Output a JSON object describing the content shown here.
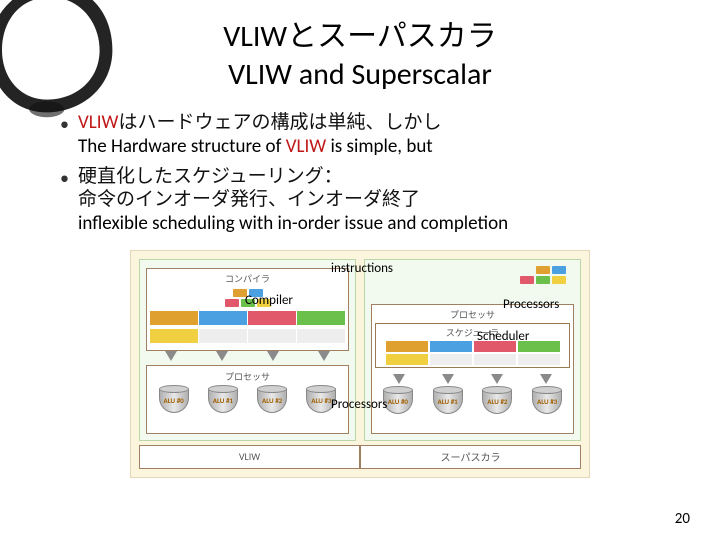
{
  "title": {
    "jp": "VLIWとスーパスカラ",
    "en": "VLIW and Superscalar"
  },
  "bullets": [
    {
      "jp_before": "",
      "jp_vliw": "VLIW",
      "jp_after": "はハードウェアの構成は単純、しかし",
      "en_before": "The Hardware structure of ",
      "en_vliw": "VLIW",
      "en_after": " is simple, but"
    },
    {
      "jp_before": "硬直化したスケジューリング：",
      "jp_vliw": "",
      "jp_after": "",
      "jp_line2": "命令のインオーダ発行、インオーダ終了",
      "en_before": "inflexible scheduling with in-order issue and completion",
      "en_vliw": "",
      "en_after": ""
    }
  ],
  "labels": {
    "instructions": "instructions",
    "compiler": "Compiler",
    "processors": "Processors",
    "scheduler": "Scheduler",
    "compiler_jp": "コンパイラ",
    "processors_jp": "プロセッサ",
    "scheduler_jp": "スケジューラ",
    "vliw_footer": "VLIW",
    "superscalar_footer": "スーパスカラ"
  },
  "alus_left": [
    "ALU #0",
    "ALU #1",
    "ALU #2",
    "ALU #3"
  ],
  "alus_right": [
    "ALU #0",
    "ALU #1",
    "ALU #2",
    "ALU #3"
  ],
  "colors": {
    "vliw_text": "#c01818",
    "panel_bg": "#f2f9ee",
    "panel_border": "#bcd6a8",
    "outer_bg": "#faf5dc",
    "box_border": "#a08060",
    "inst_colors": [
      "#e0a030",
      "#4aa0e0",
      "#e0586a",
      "#6ac04a",
      "#f0d040"
    ],
    "wide_colors": [
      "#e0a030",
      "#4aa0e0",
      "#e0586a",
      "#6ac04a"
    ],
    "wide_color_last": "#f0d040",
    "arrow": "#8a8a8a",
    "cyl_fill": "#d0d0d0",
    "alu_label": "#a06000",
    "brush": "#111111"
  },
  "page_number": "20"
}
